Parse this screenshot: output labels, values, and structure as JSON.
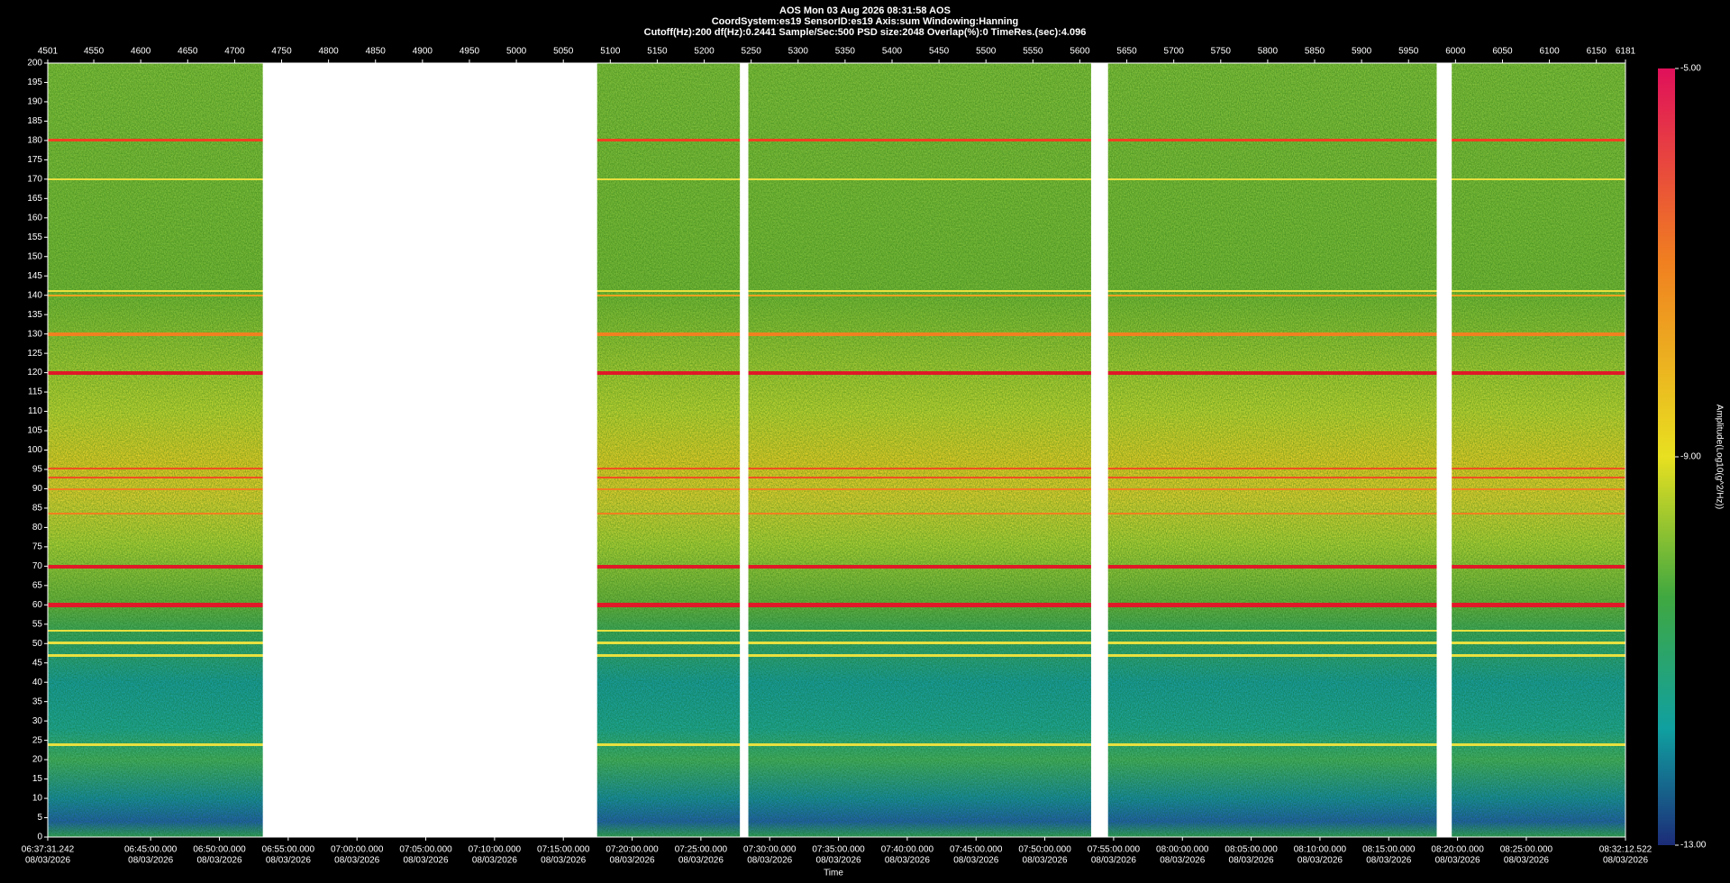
{
  "chart_data": {
    "type": "spectrogram",
    "title": "AOS  Mon 03 Aug 2026 08:31:58  AOS",
    "header_lines": [
      "CoordSystem:es19   SensorID:es19   Axis:sum   Windowing:Hanning",
      "Cutoff(Hz):200     df(Hz):0.2441     Sample/Sec:500     PSD size:2048     Overlap(%):0     TimeRes.(sec):4.096"
    ],
    "x_label": "Time",
    "ylim": [
      0,
      200
    ],
    "yticks": [
      0,
      5,
      10,
      15,
      20,
      25,
      30,
      35,
      40,
      45,
      50,
      55,
      60,
      65,
      70,
      75,
      80,
      85,
      90,
      95,
      100,
      105,
      110,
      115,
      120,
      125,
      130,
      135,
      140,
      145,
      150,
      155,
      160,
      165,
      170,
      175,
      180,
      185,
      190,
      195,
      200
    ],
    "x2lim": [
      4501,
      6181
    ],
    "x2ticks": [
      4501,
      4550,
      4600,
      4650,
      4700,
      4750,
      4800,
      4850,
      4900,
      4950,
      5000,
      5050,
      5100,
      5150,
      5200,
      5250,
      5300,
      5350,
      5400,
      5450,
      5500,
      5550,
      5600,
      5650,
      5700,
      5750,
      5800,
      5850,
      5900,
      5950,
      6000,
      6050,
      6100,
      6150,
      6181
    ],
    "xlim": [
      23851.242,
      30732.522
    ],
    "xticks": [
      {
        "value": 23851.242,
        "label": "06:37:31.242"
      },
      {
        "value": 24300,
        "label": "06:45:00.000"
      },
      {
        "value": 24600,
        "label": "06:50:00.000"
      },
      {
        "value": 24900,
        "label": "06:55:00.000"
      },
      {
        "value": 25200,
        "label": "07:00:00.000"
      },
      {
        "value": 25500,
        "label": "07:05:00.000"
      },
      {
        "value": 25800,
        "label": "07:10:00.000"
      },
      {
        "value": 26100,
        "label": "07:15:00.000"
      },
      {
        "value": 26400,
        "label": "07:20:00.000"
      },
      {
        "value": 26700,
        "label": "07:25:00.000"
      },
      {
        "value": 27000,
        "label": "07:30:00.000"
      },
      {
        "value": 27300,
        "label": "07:35:00.000"
      },
      {
        "value": 27600,
        "label": "07:40:00.000"
      },
      {
        "value": 27900,
        "label": "07:45:00.000"
      },
      {
        "value": 28200,
        "label": "07:50:00.000"
      },
      {
        "value": 28500,
        "label": "07:55:00.000"
      },
      {
        "value": 28800,
        "label": "08:00:00.000"
      },
      {
        "value": 29100,
        "label": "08:05:00.000"
      },
      {
        "value": 29400,
        "label": "08:10:00.000"
      },
      {
        "value": 29700,
        "label": "08:15:00.000"
      },
      {
        "value": 30000,
        "label": "08:20:00.000"
      },
      {
        "value": 30300,
        "label": "08:25:00.000"
      },
      {
        "value": 30732.522,
        "label": "08:32:12.522"
      }
    ],
    "xtick_dates": [
      "08/03/2026",
      "08/03/2026",
      "08/03/2026",
      "08/03/2026",
      "08/03/2026",
      "08/03/2026",
      "08/03/2026",
      "08/03/2026",
      "08/03/2026",
      "08/03/2026",
      "08/03/2026",
      "08/03/2026",
      "08/03/2026",
      "08/03/2026",
      "08/03/2026",
      "08/03/2026",
      "08/03/2026",
      "08/03/2026",
      "08/03/2026",
      "08/03/2026",
      "08/03/2026",
      "08/03/2026",
      "08/03/2026"
    ],
    "no_data_ranges": [
      [
        4730,
        5086
      ],
      [
        5238,
        5247
      ],
      [
        5612,
        5630
      ],
      [
        5980,
        5996
      ]
    ],
    "colorbar_label": "Amplitude(Log10(g^2/Hz))",
    "clim": [
      -13,
      -5
    ],
    "cticks": [
      {
        "value": -13,
        "label": "-13.00"
      },
      {
        "value": -9,
        "label": "-9.00"
      },
      {
        "value": -5,
        "label": "-5.00"
      }
    ]
  }
}
